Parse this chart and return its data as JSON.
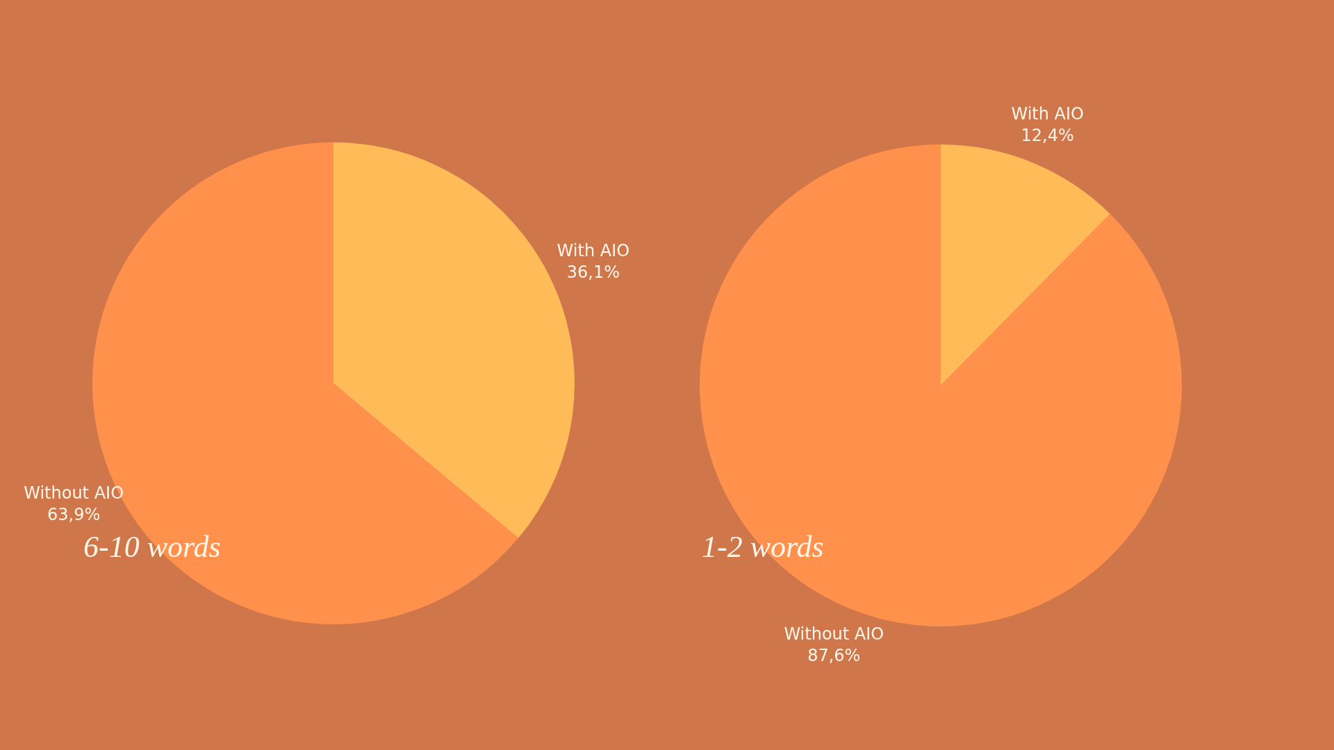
{
  "chart_data": [
    {
      "type": "pie",
      "title": "6-10 words",
      "categories": [
        "With AIO",
        "Without AIO"
      ],
      "values": [
        36.1,
        63.9
      ],
      "colors": [
        "#ffbb58",
        "#ff914d"
      ],
      "value_labels": [
        "36,1%",
        "63,9%"
      ]
    },
    {
      "type": "pie",
      "title": "1-2 words",
      "categories": [
        "With AIO",
        "Without AIO"
      ],
      "values": [
        12.4,
        87.6
      ],
      "colors": [
        "#ffbb58",
        "#ff914d"
      ],
      "value_labels": [
        "12,4%",
        "87,6%"
      ]
    }
  ]
}
